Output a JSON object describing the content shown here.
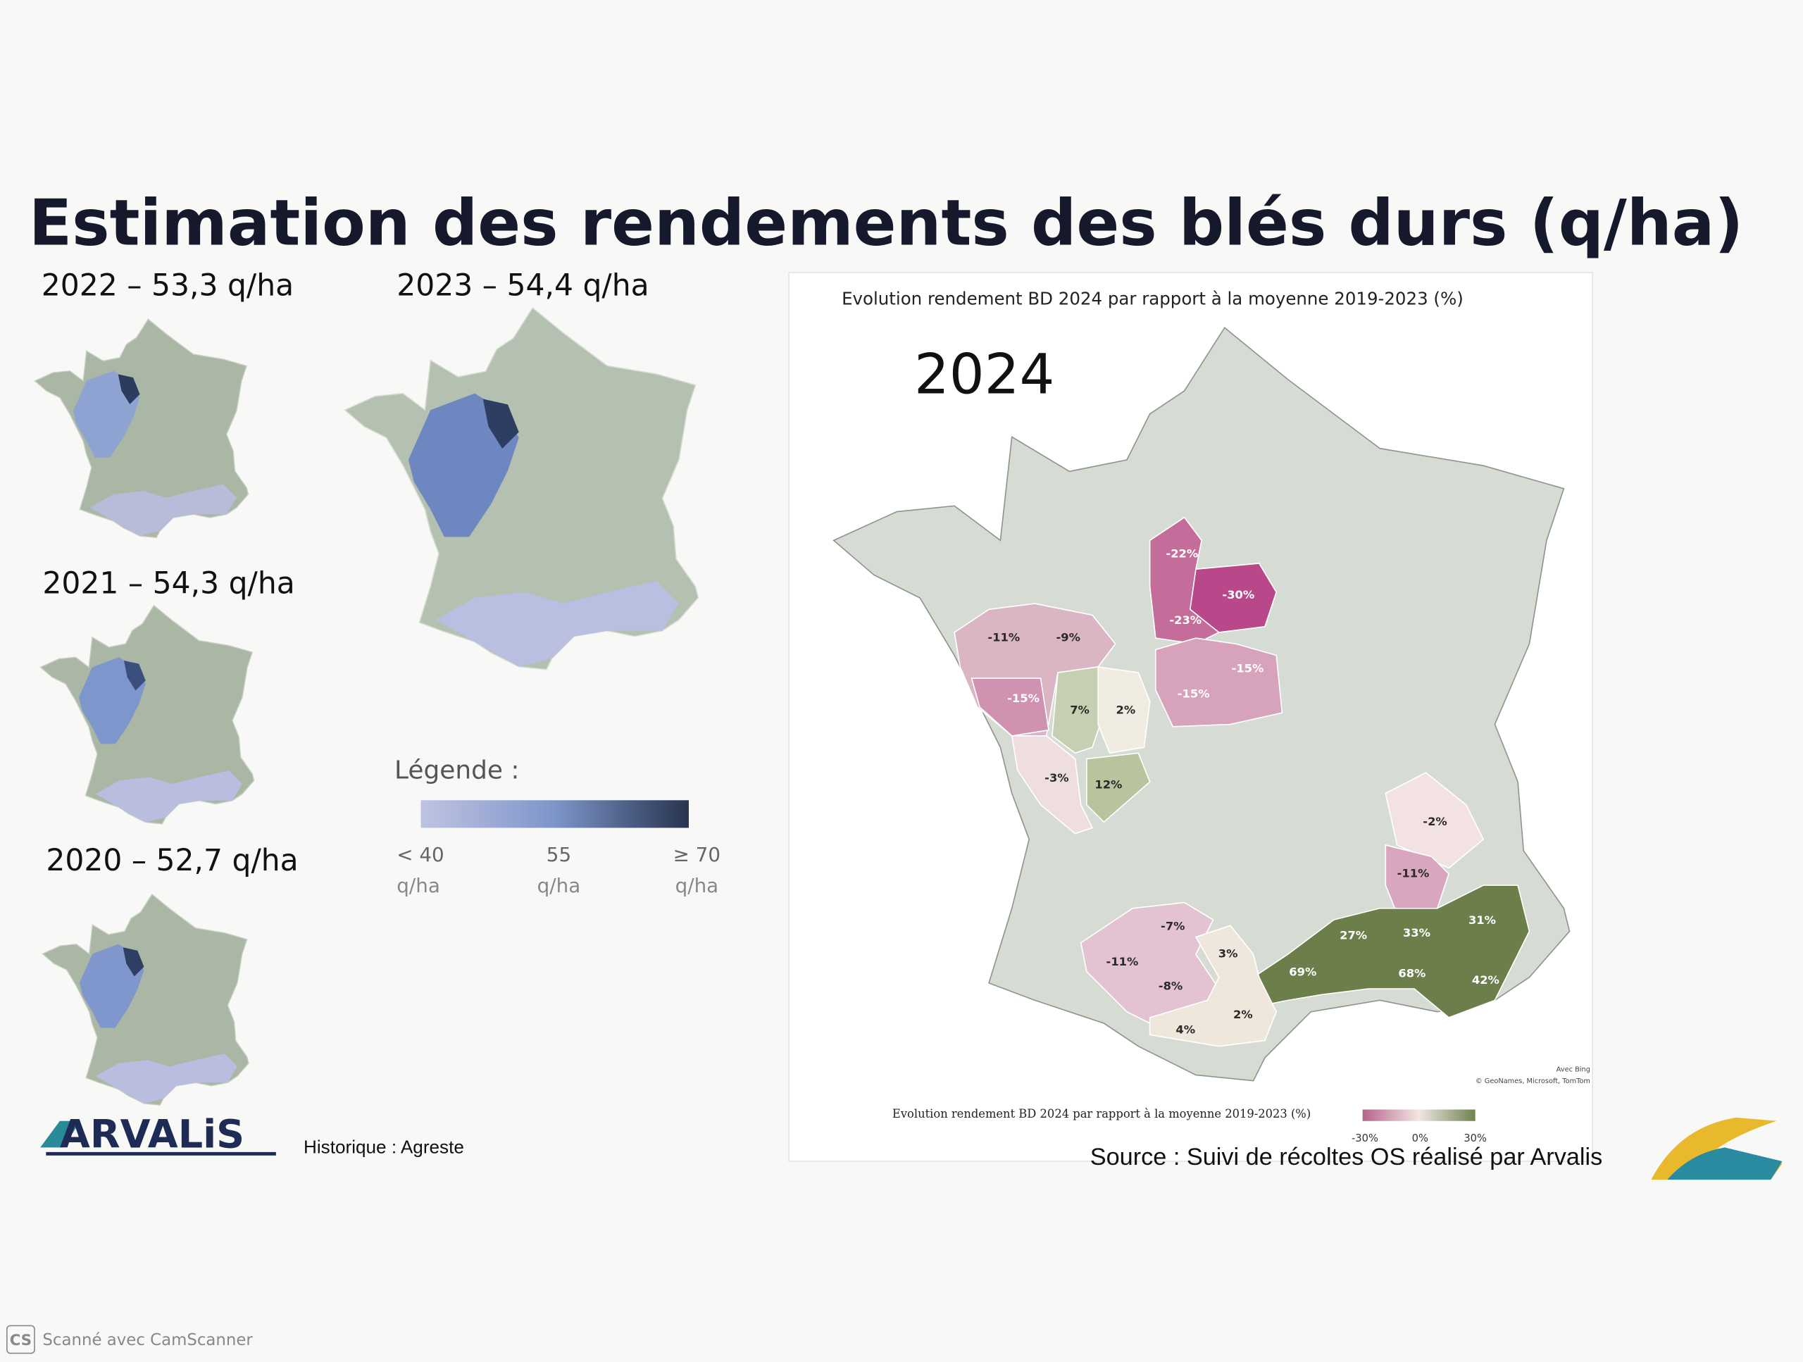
{
  "title": "Estimation des rendements des blés durs (q/ha)",
  "history": [
    {
      "label": "2022 – 53,3 q/ha"
    },
    {
      "label": "2023 – 54,4 q/ha"
    },
    {
      "label": "2021 – 54,3 q/ha"
    },
    {
      "label": "2020 – 52,7 q/ha"
    }
  ],
  "legend": {
    "title": "Légende :",
    "ticks": [
      {
        "text": "< 40",
        "unit": "q/ha"
      },
      {
        "text": "55",
        "unit": "q/ha"
      },
      {
        "text": "≥ 70",
        "unit": "q/ha"
      }
    ]
  },
  "map_2024": {
    "subtitle": "Evolution rendement BD 2024 par rapport à la moyenne 2019-2023 (%)",
    "year": "2024",
    "regions": [
      "-22%",
      "-30%",
      "-23%",
      "-15%",
      "-15%",
      "-11%",
      "-9%",
      "-15%",
      "7%",
      "2%",
      "-3%",
      "12%",
      "-2%",
      "-11%",
      "-7%",
      "-11%",
      "3%",
      "-8%",
      "4%",
      "2%",
      "69%",
      "27%",
      "33%",
      "31%",
      "68%",
      "42%"
    ],
    "attribution": [
      "Avec Bing",
      "© GeoNames, Microsoft, TomTom"
    ],
    "scale": {
      "title": "Evolution rendement BD 2024 par rapport à la moyenne 2019-2023 (%)",
      "ticks": [
        "-30%",
        "0%",
        "30%"
      ]
    }
  },
  "logo": "ARVALiS",
  "history_source": "Historique : Agreste",
  "source": "Source : Suivi de récoltes OS réalisé par Arvalis",
  "scanner": {
    "badge": "CS",
    "text": "Scanné avec CamScanner"
  }
}
